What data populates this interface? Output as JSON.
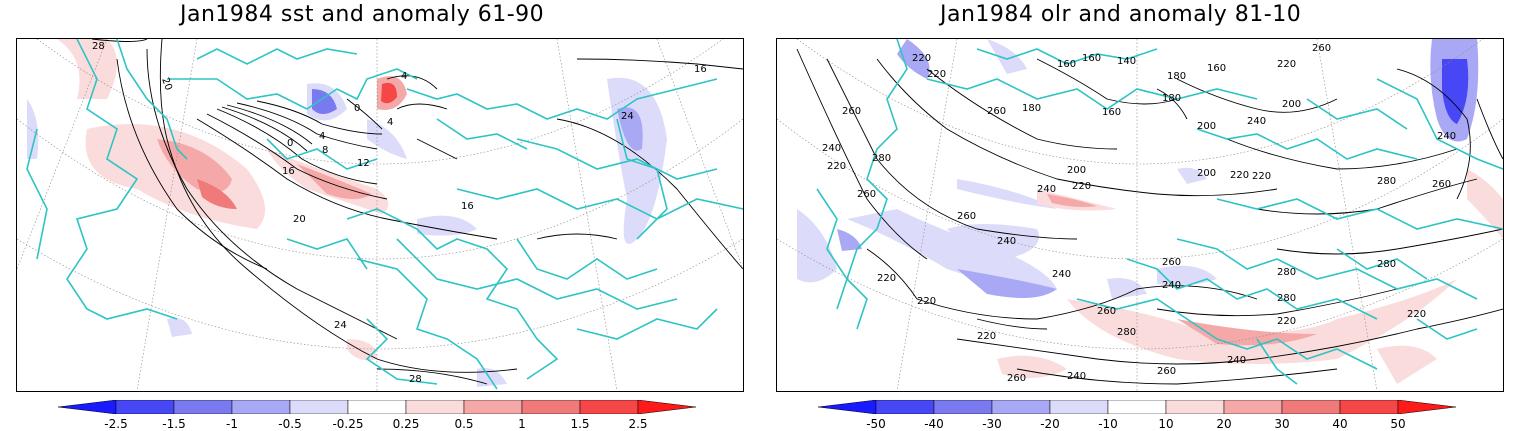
{
  "left_panel": {
    "title": "Jan1984 sst and anomaly 61-90",
    "contour_labels": [
      "28",
      "20",
      "16",
      "12",
      "8",
      "4",
      "0",
      "4",
      "0",
      "4",
      "16",
      "20",
      "24",
      "28",
      "24",
      "16"
    ],
    "colorbar": {
      "labels": [
        "-2.5",
        "-1.5",
        "-1",
        "-0.5",
        "-0.25",
        "0.25",
        "0.5",
        "1",
        "1.5",
        "2.5"
      ],
      "colors": [
        "#1a1aff",
        "#4747f5",
        "#7a7af0",
        "#a8a8f5",
        "#dcdcfa",
        "#ffffff",
        "#fadcdc",
        "#f5a8a8",
        "#f07a7a",
        "#f54747",
        "#ff1a1a"
      ]
    }
  },
  "right_panel": {
    "title": "Jan1984 olr and anomaly 81-10",
    "contour_labels": [
      "220",
      "220",
      "160",
      "160",
      "140",
      "180",
      "160",
      "180",
      "200",
      "160",
      "180",
      "260",
      "220",
      "200",
      "260",
      "260",
      "240",
      "220",
      "280",
      "260",
      "200",
      "220",
      "240",
      "220",
      "200",
      "220",
      "240",
      "280",
      "260",
      "240",
      "240",
      "260",
      "240",
      "220",
      "220",
      "260",
      "280",
      "280",
      "280",
      "220",
      "280",
      "260",
      "220",
      "240",
      "240",
      "260",
      "240",
      "260",
      "220"
    ],
    "colorbar": {
      "labels": [
        "-50",
        "-40",
        "-30",
        "-20",
        "-10",
        "10",
        "20",
        "30",
        "40",
        "50"
      ],
      "colors": [
        "#1a1aff",
        "#4747f5",
        "#7a7af0",
        "#a8a8f5",
        "#dcdcfa",
        "#ffffff",
        "#fadcdc",
        "#f5a8a8",
        "#f07a7a",
        "#f54747",
        "#ff1a1a"
      ]
    }
  },
  "colors": {
    "coastline": "#2ec4c4",
    "contour": "#000000",
    "grid": "#888888"
  }
}
